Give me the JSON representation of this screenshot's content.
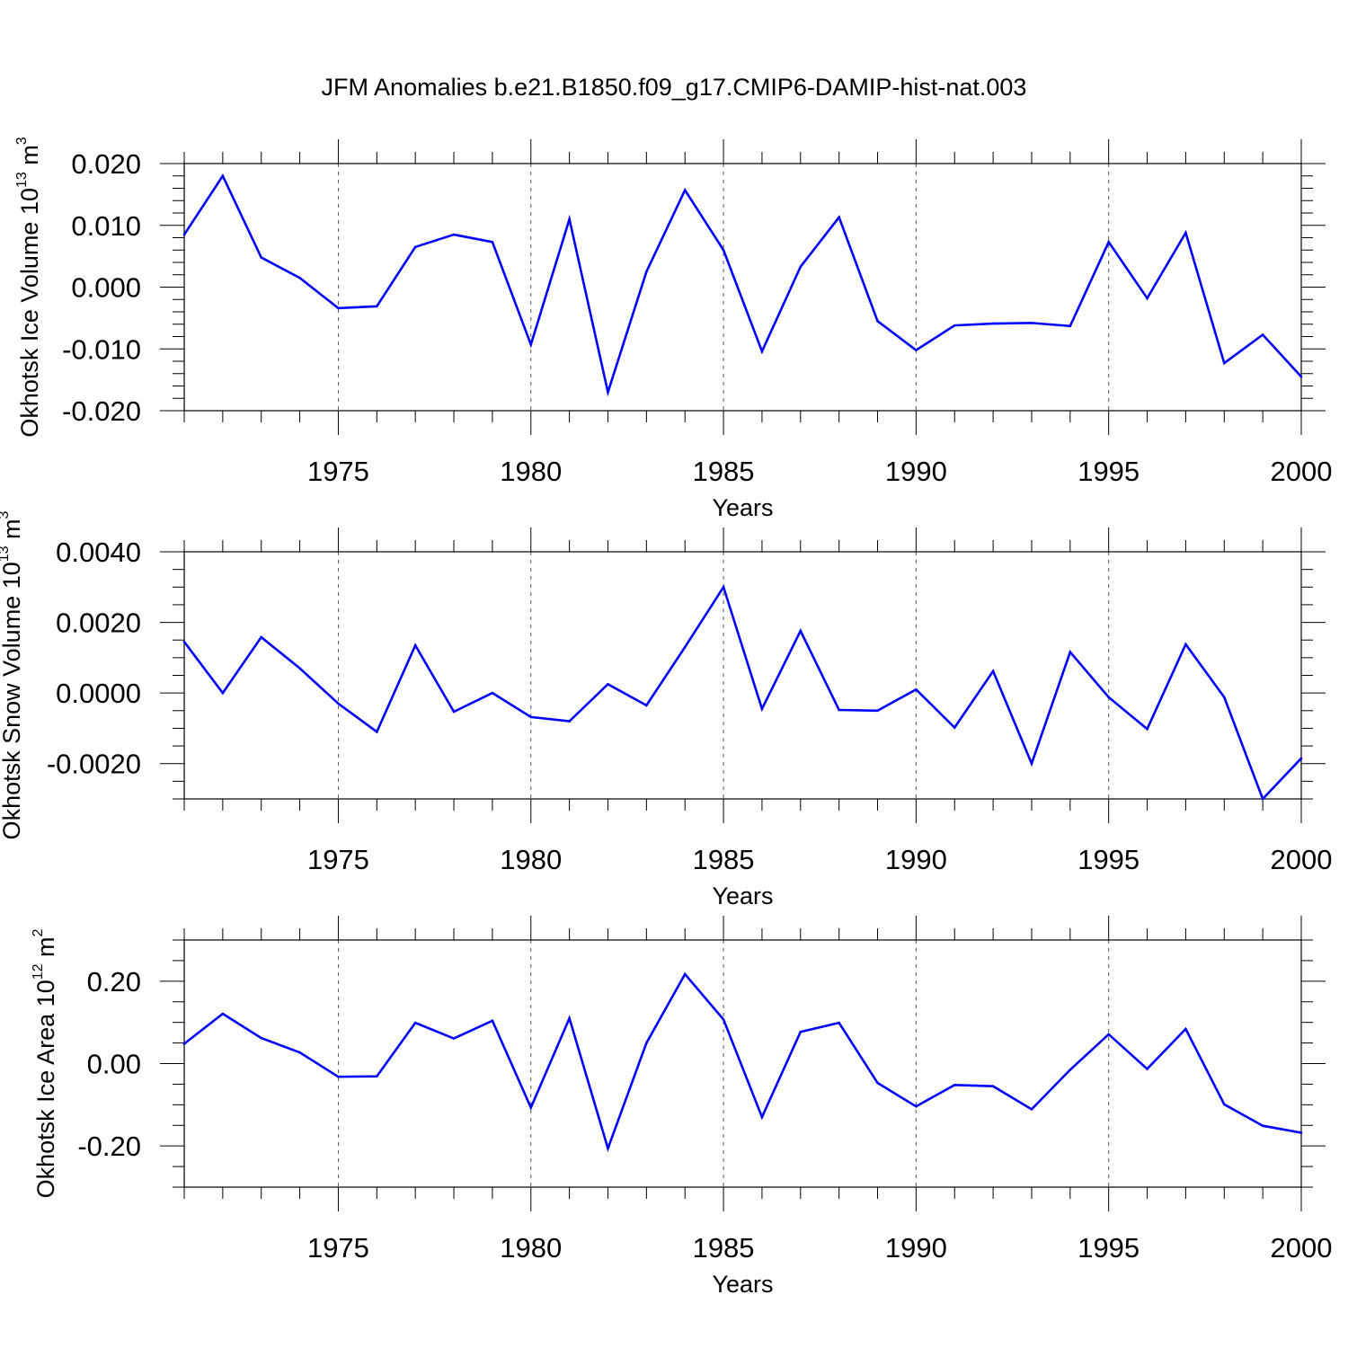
{
  "title": "JFM Anomalies b.e21.B1850.f09_g17.CMIP6-DAMIP-hist-nat.003",
  "line_color": "#0000ff",
  "chart_data": [
    {
      "type": "line",
      "ylabel": "Okhotsk Ice Volume 10",
      "ylabel_exp": "13",
      "ylabel_unit": " m",
      "ylabel_unit_exp": "3",
      "xlabel": "Years",
      "xlim": [
        1971,
        2000
      ],
      "ylim": [
        -0.02,
        0.02
      ],
      "yticks": [
        -0.02,
        -0.01,
        0.0,
        0.01,
        0.02
      ],
      "ytick_labels": [
        "-0.020",
        "-0.010",
        "0.000",
        "0.010",
        "0.020"
      ],
      "yminor_step": 0.002,
      "xticks": [
        1975,
        1980,
        1985,
        1990,
        1995,
        2000
      ],
      "xtick_labels": [
        "1975",
        "1980",
        "1985",
        "1990",
        "1995",
        "2000"
      ],
      "x": [
        1971,
        1972,
        1973,
        1974,
        1975,
        1976,
        1977,
        1978,
        1979,
        1980,
        1981,
        1982,
        1983,
        1984,
        1985,
        1986,
        1987,
        1988,
        1989,
        1990,
        1991,
        1992,
        1993,
        1994,
        1995,
        1996,
        1997,
        1998,
        1999,
        2000
      ],
      "series": [
        {
          "name": "Ice Volume",
          "values": [
            0.0085,
            0.018,
            0.0048,
            0.0015,
            -0.0034,
            -0.0031,
            0.0065,
            0.0085,
            0.0073,
            -0.0093,
            0.011,
            -0.017,
            0.0025,
            0.0157,
            0.006,
            -0.0104,
            0.0033,
            0.0113,
            -0.0055,
            -0.0102,
            -0.0062,
            -0.0059,
            -0.0058,
            -0.0063,
            0.0073,
            -0.0018,
            0.0088,
            -0.0123,
            -0.0077,
            -0.0145
          ]
        }
      ]
    },
    {
      "type": "line",
      "ylabel": "Okhotsk Snow Volume 10",
      "ylabel_exp": "13",
      "ylabel_unit": " m",
      "ylabel_unit_exp": "3",
      "xlabel": "Years",
      "xlim": [
        1971,
        2000
      ],
      "ylim": [
        -0.003,
        0.004
      ],
      "yticks": [
        -0.002,
        0.0,
        0.002,
        0.004
      ],
      "ytick_labels": [
        "-0.0020",
        "0.0000",
        "0.0020",
        "0.0040"
      ],
      "yminor_step": 0.0005,
      "xticks": [
        1975,
        1980,
        1985,
        1990,
        1995,
        2000
      ],
      "xtick_labels": [
        "1975",
        "1980",
        "1985",
        "1990",
        "1995",
        "2000"
      ],
      "x": [
        1971,
        1972,
        1973,
        1974,
        1975,
        1976,
        1977,
        1978,
        1979,
        1980,
        1981,
        1982,
        1983,
        1984,
        1985,
        1986,
        1987,
        1988,
        1989,
        1990,
        1991,
        1992,
        1993,
        1994,
        1995,
        1996,
        1997,
        1998,
        1999,
        2000
      ],
      "series": [
        {
          "name": "Snow Volume",
          "values": [
            0.00145,
            0.0,
            0.00158,
            0.0007,
            -0.0003,
            -0.0011,
            0.00135,
            -0.00053,
            0.0,
            -0.00068,
            -0.0008,
            0.00025,
            -0.00035,
            0.0013,
            0.003,
            -0.00045,
            0.00176,
            -0.00048,
            -0.0005,
            0.0001,
            -0.00098,
            0.00062,
            -0.002,
            0.00116,
            -0.00012,
            -0.00102,
            0.00138,
            -0.00012,
            -0.003,
            -0.00185
          ]
        }
      ]
    },
    {
      "type": "line",
      "ylabel": "Okhotsk Ice Area 10",
      "ylabel_exp": "12",
      "ylabel_unit": " m",
      "ylabel_unit_exp": "2",
      "xlabel": "Years",
      "xlim": [
        1971,
        2000
      ],
      "ylim": [
        -0.3,
        0.3
      ],
      "yticks": [
        -0.2,
        0.0,
        0.2
      ],
      "ytick_labels": [
        "-0.20",
        "0.00",
        "0.20"
      ],
      "yminor_step": 0.05,
      "xticks": [
        1975,
        1980,
        1985,
        1990,
        1995,
        2000
      ],
      "xtick_labels": [
        "1975",
        "1980",
        "1985",
        "1990",
        "1995",
        "2000"
      ],
      "x": [
        1971,
        1972,
        1973,
        1974,
        1975,
        1976,
        1977,
        1978,
        1979,
        1980,
        1981,
        1982,
        1983,
        1984,
        1985,
        1986,
        1987,
        1988,
        1989,
        1990,
        1991,
        1992,
        1993,
        1994,
        1995,
        1996,
        1997,
        1998,
        1999,
        2000
      ],
      "series": [
        {
          "name": "Ice Area",
          "values": [
            0.048,
            0.121,
            0.062,
            0.027,
            -0.032,
            -0.031,
            0.099,
            0.061,
            0.104,
            -0.107,
            0.11,
            -0.206,
            0.05,
            0.217,
            0.107,
            -0.13,
            0.077,
            0.099,
            -0.047,
            -0.104,
            -0.052,
            -0.055,
            -0.111,
            -0.015,
            0.071,
            -0.013,
            0.084,
            -0.099,
            -0.151,
            -0.168
          ]
        }
      ]
    }
  ]
}
